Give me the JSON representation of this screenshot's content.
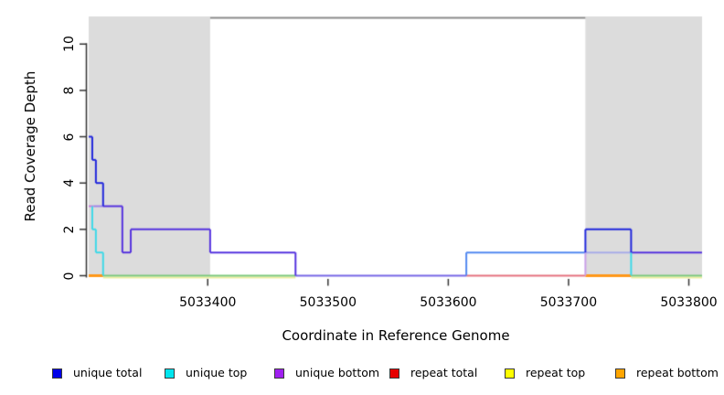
{
  "chart_data": {
    "type": "line",
    "subtype": "step-coverage",
    "title": "",
    "xlabel": "Coordinate in Reference Genome",
    "ylabel": "Read Coverage Depth",
    "x_ticks": [
      5033400,
      5033500,
      5033600,
      5033700,
      5033800
    ],
    "y_ticks": [
      0,
      2,
      4,
      6,
      8,
      10
    ],
    "xlim": [
      5033301,
      5033811
    ],
    "ylim": [
      0,
      11.2
    ],
    "grid": false,
    "legend_position": "bottom",
    "shade_color": "#dcdcdc",
    "shaded_regions": [
      {
        "x_start": 5033301,
        "x_end": 5033402
      },
      {
        "x_start": 5033714,
        "x_end": 5033811
      }
    ],
    "boundary_line": {
      "y_value": 11,
      "x_start": 5033402,
      "x_end": 5033714,
      "color": "#8a8a8a"
    },
    "legend": [
      {
        "label": "unique total",
        "color": "#0000e8"
      },
      {
        "label": "unique top",
        "color": "#00e5ee"
      },
      {
        "label": "unique bottom",
        "color": "#a020f0"
      },
      {
        "label": "repeat total",
        "color": "#e60000"
      },
      {
        "label": "repeat top",
        "color": "#ffff00"
      },
      {
        "label": "repeat bottom",
        "color": "#ffa500"
      }
    ],
    "series": [
      {
        "name": "unique total",
        "color": "#0000e8",
        "points": [
          [
            5033301,
            6
          ],
          [
            5033304,
            5
          ],
          [
            5033307,
            4
          ],
          [
            5033313,
            3
          ],
          [
            5033329,
            1
          ],
          [
            5033336,
            2
          ],
          [
            5033402,
            1
          ],
          [
            5033473,
            0
          ],
          [
            5033615,
            1
          ],
          [
            5033714,
            2
          ],
          [
            5033752,
            1
          ],
          [
            5033811,
            1
          ]
        ]
      },
      {
        "name": "unique top",
        "color": "#00e5ee",
        "points": [
          [
            5033301,
            3
          ],
          [
            5033304,
            2
          ],
          [
            5033307,
            1
          ],
          [
            5033313,
            0
          ],
          [
            5033615,
            1
          ],
          [
            5033752,
            0
          ],
          [
            5033811,
            0
          ]
        ]
      },
      {
        "name": "unique bottom",
        "color": "#a020f0",
        "points": [
          [
            5033301,
            3
          ],
          [
            5033329,
            1
          ],
          [
            5033336,
            2
          ],
          [
            5033402,
            1
          ],
          [
            5033473,
            0
          ],
          [
            5033714,
            1
          ],
          [
            5033811,
            1
          ]
        ]
      },
      {
        "name": "repeat total",
        "color": "#e60000",
        "points": [
          [
            5033301,
            0
          ],
          [
            5033811,
            0
          ]
        ]
      },
      {
        "name": "repeat top",
        "color": "#ffff00",
        "points": [
          [
            5033301,
            0
          ],
          [
            5033811,
            0
          ]
        ]
      },
      {
        "name": "repeat bottom",
        "color": "#ffa500",
        "points": [
          [
            5033301,
            0
          ],
          [
            5033811,
            0
          ]
        ]
      }
    ],
    "blend_colors": {
      "pure_blue": "#2228dc",
      "blue_over_purple": "#5634df",
      "blue_purple_zero": "#7667e6",
      "blue_over_cyan": "#5389f0",
      "cyan_line": "#3fd9e8",
      "cyan_purple_plum": "#c87fd9",
      "purple_lilac": "#9e85e8",
      "cyan_purple_pale": "#a8ace8",
      "purple_pale_vert": "#c9a0e8",
      "green_zero": "#7cc87c",
      "yellow_fringe": "#ededa0",
      "crimson_zero": "#e5707f",
      "orange_zero": "#ff9718",
      "axis": "#333333"
    },
    "visual_segments": {
      "horizontal": [
        {
          "y": 0,
          "x1": 5033313,
          "x2": 5033473,
          "color_key": "yellow_fringe",
          "w": 2,
          "dy": 2
        },
        {
          "y": 0,
          "x1": 5033752,
          "x2": 5033811,
          "color_key": "yellow_fringe",
          "w": 2,
          "dy": 2
        },
        {
          "y": 0,
          "x1": 5033313,
          "x2": 5033473,
          "color_key": "green_zero",
          "w": 2,
          "dy": 0
        },
        {
          "y": 0,
          "x1": 5033752,
          "x2": 5033811,
          "color_key": "green_zero",
          "w": 2,
          "dy": 0
        },
        {
          "y": 0,
          "x1": 5033473,
          "x2": 5033615,
          "color_key": "blue_purple_zero",
          "w": 2,
          "dy": 0
        },
        {
          "y": 0,
          "x1": 5033615,
          "x2": 5033714,
          "color_key": "crimson_zero",
          "w": 2,
          "dy": 0
        },
        {
          "y": 0,
          "x1": 5033301,
          "x2": 5033313,
          "color_key": "orange_zero",
          "w": 3,
          "dy": 0
        },
        {
          "y": 0,
          "x1": 5033714,
          "x2": 5033752,
          "color_key": "orange_zero",
          "w": 3,
          "dy": 0
        },
        {
          "y": 2,
          "x1": 5033304,
          "x2": 5033307,
          "color_key": "cyan_line",
          "w": 2,
          "dy": 0
        },
        {
          "y": 1,
          "x1": 5033307,
          "x2": 5033313,
          "color_key": "cyan_line",
          "w": 2,
          "dy": 0
        },
        {
          "y": 3,
          "x1": 5033301,
          "x2": 5033305,
          "color_key": "cyan_purple_plum",
          "w": 2,
          "dy": 0
        },
        {
          "y": 3,
          "x1": 5033305,
          "x2": 5033313,
          "color_key": "purple_lilac",
          "w": 2,
          "dy": 0
        },
        {
          "y": 1,
          "x1": 5033714,
          "x2": 5033752,
          "color_key": "cyan_purple_pale",
          "w": 2,
          "dy": 0
        },
        {
          "y": 1,
          "x1": 5033615,
          "x2": 5033714,
          "color_key": "blue_over_cyan",
          "w": 2,
          "dy": 0
        },
        {
          "y": 3,
          "x1": 5033313,
          "x2": 5033329,
          "color_key": "blue_over_purple",
          "w": 2,
          "dy": 0
        },
        {
          "y": 1,
          "x1": 5033329,
          "x2": 5033336,
          "color_key": "blue_over_purple",
          "w": 2,
          "dy": 0
        },
        {
          "y": 2,
          "x1": 5033336,
          "x2": 5033402,
          "color_key": "blue_over_purple",
          "w": 2,
          "dy": 0
        },
        {
          "y": 1,
          "x1": 5033402,
          "x2": 5033473,
          "color_key": "blue_over_purple",
          "w": 2,
          "dy": 0
        },
        {
          "y": 1,
          "x1": 5033752,
          "x2": 5033811,
          "color_key": "blue_over_purple",
          "w": 2,
          "dy": 0
        },
        {
          "y": 6,
          "x1": 5033301,
          "x2": 5033304,
          "color_key": "pure_blue",
          "w": 2,
          "dy": 0
        },
        {
          "y": 5,
          "x1": 5033304,
          "x2": 5033307,
          "color_key": "pure_blue",
          "w": 2,
          "dy": 0
        },
        {
          "y": 4,
          "x1": 5033307,
          "x2": 5033313,
          "color_key": "pure_blue",
          "w": 2,
          "dy": 0
        },
        {
          "y": 2,
          "x1": 5033714,
          "x2": 5033752,
          "color_key": "pure_blue",
          "w": 2,
          "dy": 0
        }
      ],
      "vertical": [
        {
          "x": 5033304,
          "y1": 3,
          "y2": 2,
          "color_key": "cyan_line",
          "w": 2
        },
        {
          "x": 5033307,
          "y1": 2,
          "y2": 1,
          "color_key": "cyan_line",
          "w": 2
        },
        {
          "x": 5033313,
          "y1": 1,
          "y2": 0,
          "color_key": "cyan_line",
          "w": 2
        },
        {
          "x": 5033752,
          "y1": 1,
          "y2": 0,
          "color_key": "cyan_line",
          "w": 2
        },
        {
          "x": 5033714,
          "y1": 0,
          "y2": 1,
          "color_key": "purple_pale_vert",
          "w": 2
        },
        {
          "x": 5033615,
          "y1": 0,
          "y2": 1,
          "color_key": "blue_over_cyan",
          "w": 2
        },
        {
          "x": 5033329,
          "y1": 3,
          "y2": 1,
          "color_key": "blue_over_purple",
          "w": 2
        },
        {
          "x": 5033336,
          "y1": 1,
          "y2": 2,
          "color_key": "blue_over_purple",
          "w": 2
        },
        {
          "x": 5033402,
          "y1": 2,
          "y2": 1,
          "color_key": "blue_over_purple",
          "w": 2
        },
        {
          "x": 5033473,
          "y1": 1,
          "y2": 0,
          "color_key": "blue_over_purple",
          "w": 2
        },
        {
          "x": 5033304,
          "y1": 6,
          "y2": 5,
          "color_key": "pure_blue",
          "w": 2
        },
        {
          "x": 5033307,
          "y1": 5,
          "y2": 4,
          "color_key": "pure_blue",
          "w": 2
        },
        {
          "x": 5033313,
          "y1": 4,
          "y2": 3,
          "color_key": "pure_blue",
          "w": 2
        },
        {
          "x": 5033714,
          "y1": 1,
          "y2": 2,
          "color_key": "pure_blue",
          "w": 2
        },
        {
          "x": 5033752,
          "y1": 2,
          "y2": 1,
          "color_key": "pure_blue",
          "w": 2
        }
      ]
    }
  }
}
